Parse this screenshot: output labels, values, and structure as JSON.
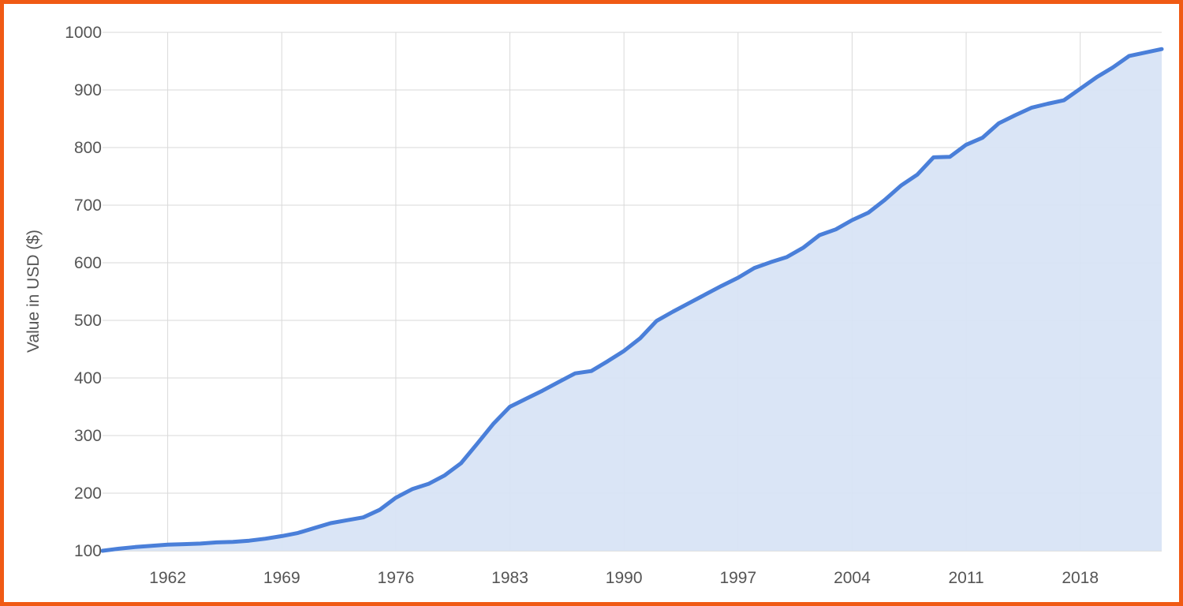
{
  "colors": {
    "border": "#f05a14",
    "line": "#4a7fd9",
    "area_fill": "#d8e4f6",
    "grid": "#d9d9d9",
    "text": "#555555"
  },
  "chart_data": {
    "type": "area",
    "title": "",
    "xlabel": "",
    "ylabel": "Value in USD ($)",
    "xlim": [
      1958,
      2023
    ],
    "ylim": [
      100,
      1000
    ],
    "grid": true,
    "legend": "none",
    "x_ticks": [
      "1962",
      "1969",
      "1976",
      "1983",
      "1990",
      "1997",
      "2004",
      "2011",
      "2018"
    ],
    "y_ticks": [
      "100",
      "200",
      "300",
      "400",
      "500",
      "600",
      "700",
      "800",
      "900",
      "1000"
    ],
    "series": [
      {
        "x": [
          1958,
          1959,
          1960,
          1961,
          1962,
          1963,
          1964,
          1965,
          1966,
          1967,
          1968,
          1969,
          1970,
          1971,
          1972,
          1973,
          1974,
          1975,
          1976,
          1977,
          1978,
          1979,
          1980,
          1981,
          1982,
          1983,
          1984,
          1985,
          1986,
          1987,
          1988,
          1989,
          1990,
          1991,
          1992,
          1993,
          1994,
          1995,
          1996,
          1997,
          1998,
          1999,
          2000,
          2001,
          2002,
          2003,
          2004,
          2005,
          2006,
          2007,
          2008,
          2009,
          2010,
          2011,
          2012,
          2013,
          2014,
          2015,
          2016,
          2017,
          2018,
          2019,
          2020,
          2021
        ],
        "values": [
          100,
          103.5,
          106.5,
          108.5,
          110.5,
          111.5,
          112.5,
          114.5,
          115.5,
          117.5,
          121,
          125.5,
          131,
          139.5,
          148,
          153,
          158,
          171,
          192,
          207,
          216,
          231,
          252,
          286,
          321,
          350,
          364,
          378,
          393,
          408,
          412,
          429,
          447,
          469,
          499,
          515,
          530,
          545,
          560,
          574,
          591,
          601,
          610,
          626,
          648,
          658,
          674,
          687,
          709,
          734,
          753,
          783,
          784,
          805,
          817,
          842,
          856,
          869,
          876,
          882,
          902,
          922,
          939,
          959
        ]
      }
    ]
  }
}
